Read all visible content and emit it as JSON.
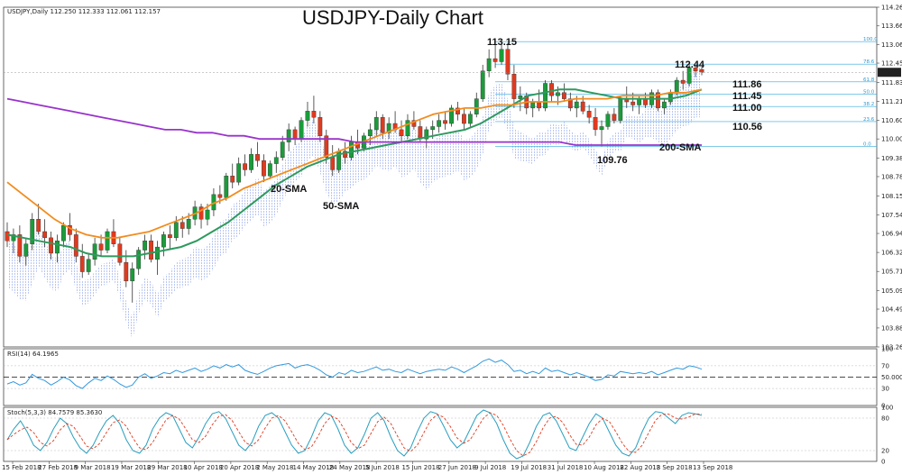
{
  "chart_data": {
    "type": "candlestick",
    "title": "USDJPY-Daily Chart",
    "symbol_header": "USDJPY,Daily  112.250 112.333 112.061 112.157",
    "price_axis": {
      "ticks": [
        "114.265",
        "113.660",
        "113.060",
        "112.455",
        "111.830",
        "111.215",
        "110.600",
        "110.000",
        "109.385",
        "108.780",
        "108.155",
        "107.540",
        "106.940",
        "106.325",
        "105.710",
        "105.095",
        "104.490",
        "103.880",
        "103.265"
      ],
      "range": [
        103.265,
        114.265
      ],
      "current_price": "112.157"
    },
    "date_axis": [
      "15 Feb 2018",
      "27 Feb 2018",
      "9 Mar 2018",
      "19 Mar 2018",
      "29 Mar 2018",
      "10 Apr 2018",
      "20 Apr 2018",
      "2 May 2018",
      "14 May 2018",
      "24 May 2018",
      "5 Jun 2018",
      "15 Jun 2018",
      "27 Jun 2018",
      "9 Jul 2018",
      "19 Jul 2018",
      "31 Jul 2018",
      "10 Aug 2018",
      "22 Aug 2018",
      "3 Sep 2018",
      "13 Sep 2018"
    ],
    "candles": [
      {
        "o": 107.0,
        "h": 107.3,
        "l": 106.5,
        "c": 106.7
      },
      {
        "o": 106.7,
        "h": 107.1,
        "l": 106.3,
        "c": 106.9
      },
      {
        "o": 106.9,
        "h": 107.2,
        "l": 106.0,
        "c": 106.2
      },
      {
        "o": 106.2,
        "h": 106.8,
        "l": 105.9,
        "c": 106.6
      },
      {
        "o": 106.6,
        "h": 107.6,
        "l": 106.4,
        "c": 107.4
      },
      {
        "o": 107.4,
        "h": 107.9,
        "l": 106.9,
        "c": 107.0
      },
      {
        "o": 107.0,
        "h": 107.4,
        "l": 106.5,
        "c": 106.8
      },
      {
        "o": 106.8,
        "h": 107.0,
        "l": 106.1,
        "c": 106.3
      },
      {
        "o": 106.3,
        "h": 106.9,
        "l": 106.0,
        "c": 106.7
      },
      {
        "o": 106.7,
        "h": 107.3,
        "l": 106.5,
        "c": 107.2
      },
      {
        "o": 107.2,
        "h": 107.6,
        "l": 106.7,
        "c": 106.9
      },
      {
        "o": 106.9,
        "h": 107.1,
        "l": 106.0,
        "c": 106.2
      },
      {
        "o": 106.2,
        "h": 106.6,
        "l": 105.5,
        "c": 105.7
      },
      {
        "o": 105.7,
        "h": 106.3,
        "l": 105.6,
        "c": 106.1
      },
      {
        "o": 106.1,
        "h": 106.8,
        "l": 105.9,
        "c": 106.6
      },
      {
        "o": 106.6,
        "h": 106.9,
        "l": 106.2,
        "c": 106.4
      },
      {
        "o": 106.4,
        "h": 107.1,
        "l": 106.3,
        "c": 107.0
      },
      {
        "o": 107.0,
        "h": 107.4,
        "l": 106.5,
        "c": 106.6
      },
      {
        "o": 106.6,
        "h": 106.8,
        "l": 105.9,
        "c": 106.0
      },
      {
        "o": 106.0,
        "h": 106.4,
        "l": 105.2,
        "c": 105.4
      },
      {
        "o": 105.4,
        "h": 106.0,
        "l": 104.7,
        "c": 105.8
      },
      {
        "o": 105.8,
        "h": 106.5,
        "l": 105.6,
        "c": 106.4
      },
      {
        "o": 106.4,
        "h": 106.9,
        "l": 106.1,
        "c": 106.7
      },
      {
        "o": 106.7,
        "h": 106.9,
        "l": 106.0,
        "c": 106.1
      },
      {
        "o": 106.1,
        "h": 106.7,
        "l": 105.6,
        "c": 106.5
      },
      {
        "o": 106.5,
        "h": 107.0,
        "l": 106.2,
        "c": 106.9
      },
      {
        "o": 106.9,
        "h": 107.2,
        "l": 106.4,
        "c": 106.8
      },
      {
        "o": 106.8,
        "h": 107.5,
        "l": 106.7,
        "c": 107.3
      },
      {
        "o": 107.3,
        "h": 107.5,
        "l": 106.8,
        "c": 107.1
      },
      {
        "o": 107.1,
        "h": 107.6,
        "l": 106.9,
        "c": 107.4
      },
      {
        "o": 107.4,
        "h": 108.0,
        "l": 107.2,
        "c": 107.8
      },
      {
        "o": 107.8,
        "h": 107.9,
        "l": 107.1,
        "c": 107.4
      },
      {
        "o": 107.4,
        "h": 107.9,
        "l": 107.2,
        "c": 107.7
      },
      {
        "o": 107.7,
        "h": 108.4,
        "l": 107.5,
        "c": 108.2
      },
      {
        "o": 108.2,
        "h": 108.5,
        "l": 107.9,
        "c": 108.1
      },
      {
        "o": 108.1,
        "h": 108.9,
        "l": 108.0,
        "c": 108.8
      },
      {
        "o": 108.8,
        "h": 109.2,
        "l": 108.4,
        "c": 108.6
      },
      {
        "o": 108.6,
        "h": 109.4,
        "l": 108.5,
        "c": 109.2
      },
      {
        "o": 109.2,
        "h": 109.5,
        "l": 108.8,
        "c": 109.0
      },
      {
        "o": 109.0,
        "h": 109.7,
        "l": 108.9,
        "c": 109.5
      },
      {
        "o": 109.5,
        "h": 109.9,
        "l": 109.1,
        "c": 109.3
      },
      {
        "o": 109.3,
        "h": 109.5,
        "l": 108.6,
        "c": 108.8
      },
      {
        "o": 108.8,
        "h": 109.3,
        "l": 108.7,
        "c": 109.2
      },
      {
        "o": 109.2,
        "h": 109.6,
        "l": 108.9,
        "c": 109.4
      },
      {
        "o": 109.4,
        "h": 110.1,
        "l": 109.3,
        "c": 109.9
      },
      {
        "o": 109.9,
        "h": 110.5,
        "l": 109.6,
        "c": 110.3
      },
      {
        "o": 110.3,
        "h": 110.4,
        "l": 109.8,
        "c": 110.0
      },
      {
        "o": 110.0,
        "h": 110.7,
        "l": 109.9,
        "c": 110.6
      },
      {
        "o": 110.6,
        "h": 111.2,
        "l": 110.4,
        "c": 110.9
      },
      {
        "o": 110.9,
        "h": 111.4,
        "l": 110.5,
        "c": 110.7
      },
      {
        "o": 110.7,
        "h": 110.9,
        "l": 109.9,
        "c": 110.1
      },
      {
        "o": 110.1,
        "h": 110.3,
        "l": 109.2,
        "c": 109.4
      },
      {
        "o": 109.4,
        "h": 109.8,
        "l": 108.8,
        "c": 109.0
      },
      {
        "o": 109.0,
        "h": 109.7,
        "l": 108.9,
        "c": 109.6
      },
      {
        "o": 109.6,
        "h": 109.9,
        "l": 109.2,
        "c": 109.4
      },
      {
        "o": 109.4,
        "h": 110.1,
        "l": 109.3,
        "c": 109.9
      },
      {
        "o": 109.9,
        "h": 110.3,
        "l": 109.5,
        "c": 109.7
      },
      {
        "o": 109.7,
        "h": 110.2,
        "l": 109.6,
        "c": 110.1
      },
      {
        "o": 110.1,
        "h": 110.5,
        "l": 109.8,
        "c": 110.3
      },
      {
        "o": 110.3,
        "h": 110.9,
        "l": 110.1,
        "c": 110.7
      },
      {
        "o": 110.7,
        "h": 110.8,
        "l": 110.0,
        "c": 110.2
      },
      {
        "o": 110.2,
        "h": 110.7,
        "l": 110.0,
        "c": 110.5
      },
      {
        "o": 110.5,
        "h": 110.9,
        "l": 110.2,
        "c": 110.3
      },
      {
        "o": 110.3,
        "h": 110.6,
        "l": 109.9,
        "c": 110.1
      },
      {
        "o": 110.1,
        "h": 110.8,
        "l": 110.0,
        "c": 110.6
      },
      {
        "o": 110.6,
        "h": 110.9,
        "l": 110.3,
        "c": 110.4
      },
      {
        "o": 110.4,
        "h": 110.6,
        "l": 109.9,
        "c": 110.0
      },
      {
        "o": 110.0,
        "h": 110.4,
        "l": 109.7,
        "c": 110.3
      },
      {
        "o": 110.3,
        "h": 110.6,
        "l": 110.0,
        "c": 110.4
      },
      {
        "o": 110.4,
        "h": 110.8,
        "l": 110.2,
        "c": 110.6
      },
      {
        "o": 110.6,
        "h": 110.9,
        "l": 110.3,
        "c": 110.5
      },
      {
        "o": 110.5,
        "h": 111.1,
        "l": 110.4,
        "c": 111.0
      },
      {
        "o": 111.0,
        "h": 111.2,
        "l": 110.6,
        "c": 110.8
      },
      {
        "o": 110.8,
        "h": 111.0,
        "l": 110.3,
        "c": 110.5
      },
      {
        "o": 110.5,
        "h": 110.9,
        "l": 110.4,
        "c": 110.8
      },
      {
        "o": 110.8,
        "h": 111.5,
        "l": 110.7,
        "c": 111.3
      },
      {
        "o": 111.3,
        "h": 112.4,
        "l": 111.2,
        "c": 112.2
      },
      {
        "o": 112.2,
        "h": 112.9,
        "l": 112.0,
        "c": 112.6
      },
      {
        "o": 112.6,
        "h": 113.1,
        "l": 112.3,
        "c": 112.5
      },
      {
        "o": 112.5,
        "h": 113.15,
        "l": 112.4,
        "c": 112.9
      },
      {
        "o": 112.9,
        "h": 113.1,
        "l": 111.9,
        "c": 112.1
      },
      {
        "o": 112.1,
        "h": 112.4,
        "l": 111.0,
        "c": 111.3
      },
      {
        "o": 111.3,
        "h": 111.7,
        "l": 110.9,
        "c": 111.4
      },
      {
        "o": 111.4,
        "h": 111.5,
        "l": 110.8,
        "c": 111.0
      },
      {
        "o": 111.0,
        "h": 111.3,
        "l": 110.7,
        "c": 111.2
      },
      {
        "o": 111.2,
        "h": 111.6,
        "l": 110.9,
        "c": 111.0
      },
      {
        "o": 111.0,
        "h": 111.9,
        "l": 110.9,
        "c": 111.8
      },
      {
        "o": 111.8,
        "h": 111.9,
        "l": 111.2,
        "c": 111.4
      },
      {
        "o": 111.4,
        "h": 111.7,
        "l": 111.1,
        "c": 111.5
      },
      {
        "o": 111.5,
        "h": 111.8,
        "l": 111.2,
        "c": 111.3
      },
      {
        "o": 111.3,
        "h": 111.5,
        "l": 110.9,
        "c": 111.0
      },
      {
        "o": 111.0,
        "h": 111.4,
        "l": 110.7,
        "c": 111.2
      },
      {
        "o": 111.2,
        "h": 111.4,
        "l": 110.8,
        "c": 110.9
      },
      {
        "o": 110.9,
        "h": 111.1,
        "l": 110.5,
        "c": 110.7
      },
      {
        "o": 110.7,
        "h": 111.0,
        "l": 110.1,
        "c": 110.3
      },
      {
        "o": 110.3,
        "h": 110.6,
        "l": 109.76,
        "c": 110.4
      },
      {
        "o": 110.4,
        "h": 110.9,
        "l": 110.3,
        "c": 110.8
      },
      {
        "o": 110.8,
        "h": 111.0,
        "l": 110.5,
        "c": 110.6
      },
      {
        "o": 110.6,
        "h": 111.4,
        "l": 110.5,
        "c": 111.3
      },
      {
        "o": 111.3,
        "h": 111.7,
        "l": 111.0,
        "c": 111.2
      },
      {
        "o": 111.2,
        "h": 111.5,
        "l": 110.9,
        "c": 111.1
      },
      {
        "o": 111.1,
        "h": 111.4,
        "l": 110.8,
        "c": 111.3
      },
      {
        "o": 111.3,
        "h": 111.5,
        "l": 111.0,
        "c": 111.1
      },
      {
        "o": 111.1,
        "h": 111.6,
        "l": 111.0,
        "c": 111.5
      },
      {
        "o": 111.5,
        "h": 111.6,
        "l": 110.9,
        "c": 111.0
      },
      {
        "o": 111.0,
        "h": 111.3,
        "l": 110.8,
        "c": 111.2
      },
      {
        "o": 111.2,
        "h": 111.6,
        "l": 111.1,
        "c": 111.5
      },
      {
        "o": 111.5,
        "h": 112.0,
        "l": 111.4,
        "c": 111.9
      },
      {
        "o": 111.9,
        "h": 112.2,
        "l": 111.6,
        "c": 111.8
      },
      {
        "o": 111.8,
        "h": 112.44,
        "l": 111.7,
        "c": 112.3
      },
      {
        "o": 112.3,
        "h": 112.4,
        "l": 112.0,
        "c": 112.2
      },
      {
        "o": 112.25,
        "h": 112.333,
        "l": 112.061,
        "c": 112.157
      }
    ],
    "lines": [
      {
        "name": "20-SMA",
        "color": "#2e9a5e",
        "values": [
          106.9,
          106.8,
          106.7,
          106.6,
          106.5,
          106.3,
          106.2,
          106.2,
          106.2,
          106.3,
          106.4,
          106.5,
          106.7,
          107.0,
          107.3,
          107.7,
          108.1,
          108.5,
          108.8,
          109.1,
          109.3,
          109.5,
          109.6,
          109.7,
          109.8,
          109.9,
          110.0,
          110.1,
          110.2,
          110.3,
          110.5,
          110.8,
          111.1,
          111.4,
          111.5,
          111.6,
          111.6,
          111.5,
          111.4,
          111.3,
          111.3,
          111.3,
          111.3,
          111.4,
          111.6
        ]
      },
      {
        "name": "50-SMA",
        "color": "#f28c1e",
        "values": [
          108.6,
          108.2,
          107.8,
          107.4,
          107.1,
          106.9,
          106.8,
          106.8,
          106.9,
          107.0,
          107.2,
          107.4,
          107.6,
          107.9,
          108.1,
          108.4,
          108.6,
          108.8,
          109.0,
          109.2,
          109.4,
          109.6,
          109.8,
          110.0,
          110.2,
          110.4,
          110.6,
          110.8,
          110.9,
          111.0,
          111.0,
          111.1,
          111.1,
          111.2,
          111.2,
          111.2,
          111.3,
          111.3,
          111.3,
          111.4,
          111.4,
          111.4,
          111.5,
          111.5,
          111.6
        ]
      },
      {
        "name": "200-SMA",
        "color": "#9933cc",
        "values": [
          111.3,
          111.2,
          111.1,
          111.0,
          110.9,
          110.8,
          110.7,
          110.6,
          110.5,
          110.4,
          110.3,
          110.3,
          110.2,
          110.2,
          110.1,
          110.1,
          110.0,
          110.0,
          110.0,
          110.0,
          110.0,
          110.0,
          109.9,
          109.9,
          109.9,
          109.9,
          109.9,
          109.9,
          109.9,
          109.9,
          109.9,
          109.9,
          109.9,
          109.9,
          109.9,
          109.9,
          109.8,
          109.8,
          109.8,
          109.8,
          109.8,
          109.8,
          109.8,
          109.8,
          109.8
        ]
      }
    ],
    "annotations": [
      {
        "text": "113.15",
        "price": 113.15
      },
      {
        "text": "112.44",
        "price": 112.44
      },
      {
        "text": "111.86",
        "price": 111.86
      },
      {
        "text": "111.45",
        "price": 111.45
      },
      {
        "text": "111.00",
        "price": 111.0
      },
      {
        "text": "110.56",
        "price": 110.56
      },
      {
        "text": "109.76",
        "price": 109.76
      },
      {
        "text": "20-SMA"
      },
      {
        "text": "50-SMA"
      },
      {
        "text": "200-SMA"
      }
    ],
    "fibonacci": [
      {
        "label": "100.0",
        "price": 113.15
      },
      {
        "label": "78.6",
        "price": 112.42
      },
      {
        "label": "61.8",
        "price": 111.85
      },
      {
        "label": "50.0",
        "price": 111.45
      },
      {
        "label": "38.2",
        "price": 111.05
      },
      {
        "label": "23.6",
        "price": 110.56
      },
      {
        "label": "0.0",
        "price": 109.76
      }
    ],
    "rsi": {
      "header": "RSI(14) 64.1965",
      "ticks": [
        "100",
        "70",
        "50.0000",
        "30",
        "0"
      ],
      "values": [
        38,
        42,
        36,
        40,
        55,
        48,
        44,
        36,
        42,
        50,
        45,
        35,
        30,
        40,
        48,
        44,
        52,
        46,
        38,
        32,
        36,
        50,
        56,
        48,
        52,
        58,
        56,
        62,
        58,
        62,
        66,
        60,
        64,
        70,
        66,
        72,
        68,
        72,
        62,
        58,
        55,
        60,
        66,
        70,
        72,
        74,
        66,
        70,
        72,
        68,
        62,
        54,
        50,
        58,
        55,
        62,
        58,
        60,
        64,
        68,
        62,
        64,
        60,
        58,
        64,
        60,
        56,
        60,
        62,
        64,
        62,
        68,
        64,
        58,
        64,
        70,
        78,
        82,
        76,
        80,
        72,
        60,
        62,
        56,
        60,
        56,
        66,
        60,
        62,
        58,
        54,
        58,
        54,
        50,
        44,
        46,
        54,
        52,
        60,
        58,
        56,
        58,
        56,
        60,
        54,
        58,
        62,
        66,
        64,
        70,
        68,
        64
      ]
    },
    "stoch": {
      "header": "Stoch(5,3,3) 84.7579 85.3630",
      "ticks": [
        "100",
        "80",
        "20",
        "0"
      ],
      "values": [
        40,
        60,
        75,
        55,
        30,
        20,
        35,
        60,
        80,
        70,
        45,
        25,
        15,
        30,
        55,
        75,
        85,
        70,
        40,
        20,
        15,
        30,
        60,
        80,
        90,
        85,
        60,
        35,
        25,
        45,
        70,
        88,
        92,
        80,
        55,
        30,
        20,
        35,
        65,
        85,
        90,
        80,
        55,
        30,
        15,
        20,
        45,
        75,
        90,
        85,
        60,
        30,
        15,
        25,
        50,
        80,
        90,
        75,
        45,
        20,
        10,
        25,
        55,
        80,
        92,
        88,
        65,
        40,
        25,
        35,
        60,
        85,
        95,
        90,
        70,
        40,
        15,
        5,
        10,
        35,
        65,
        85,
        90,
        75,
        50,
        25,
        20,
        45,
        70,
        88,
        80,
        55,
        30,
        15,
        10,
        25,
        55,
        80,
        92,
        90,
        80,
        70,
        85,
        90,
        88,
        85
      ]
    }
  }
}
